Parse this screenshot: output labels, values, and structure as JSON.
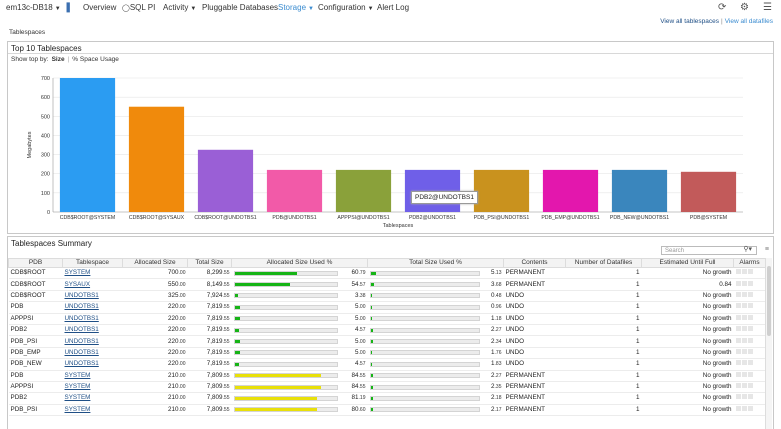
{
  "topbar": {
    "target": "em13c-DB18",
    "overview": "Overview",
    "sqlpi": "SQL PI",
    "activity": "Activity",
    "pluggable": "Pluggable Databases",
    "storage": "Storage",
    "configuration": "Configuration",
    "alertlog": "Alert Log"
  },
  "links": {
    "view_tablespaces": "View all tablespaces",
    "view_datafiles": "View all datafiles",
    "separator": "|"
  },
  "breadcrumb": "Tablespaces",
  "top10": {
    "title": "Top 10 Tablespaces",
    "show_by_label": "Show top by:",
    "option_size": "Size",
    "option_usage": "% Space Usage",
    "tooltip": "PDB2@UNDOTBS1"
  },
  "chart_data": {
    "type": "bar",
    "categories": [
      "CDB$ROOT@SYSTEM",
      "CDB$ROOT@SYSAUX",
      "CDB$ROOT@UNDOTBS1",
      "PDB@UNDOTBS1",
      "APPPSI@UNDOTBS1",
      "PDB2@UNDOTBS1",
      "PDB_PSI@UNDOTBS1",
      "PDB_EMP@UNDOTBS1",
      "PDB_NEW@UNDOTBS1",
      "PDB@SYSTEM"
    ],
    "values": [
      700,
      550,
      325,
      220,
      220,
      220,
      220,
      220,
      220,
      210
    ],
    "colors": [
      "#2b9cf2",
      "#f08a0c",
      "#9a5fd6",
      "#f25aa8",
      "#8aa13a",
      "#6f5fe8",
      "#c9921e",
      "#e317ad",
      "#3a86bd",
      "#c25a5a"
    ],
    "xlabel": "Tablespaces",
    "ylabel": "Megabytes",
    "ylim": [
      0,
      700
    ],
    "yticks": [
      0,
      100,
      200,
      300,
      400,
      500,
      600,
      700
    ],
    "grid": true
  },
  "summary": {
    "title": "Tablespaces Summary",
    "search_placeholder": "Search",
    "columns": [
      "PDB",
      "Tablespace",
      "Allocated Size",
      "Total Size",
      "Allocated Size Used %",
      "Total Size Used %",
      "Contents",
      "Number of Datafiles",
      "Estimated Until Full",
      "Alarms"
    ],
    "rows": [
      {
        "pdb": "CDB$ROOT",
        "ts": "SYSTEM",
        "alloc_int": "700",
        "alloc_dec": ".00",
        "total_int": "8,299",
        "total_dec": ".55",
        "apct": 60.79,
        "apct_int": "60",
        "apct_dec": ".79",
        "tpct": 5.13,
        "tpct_int": "5",
        "tpct_dec": ".13",
        "contents": "PERMANENT",
        "files": "1",
        "est": "No growth"
      },
      {
        "pdb": "CDB$ROOT",
        "ts": "SYSAUX",
        "alloc_int": "550",
        "alloc_dec": ".00",
        "total_int": "8,149",
        "total_dec": ".55",
        "apct": 54.57,
        "apct_int": "54",
        "apct_dec": ".57",
        "tpct": 3.68,
        "tpct_int": "3",
        "tpct_dec": ".68",
        "contents": "PERMANENT",
        "files": "1",
        "est": "0.84"
      },
      {
        "pdb": "CDB$ROOT",
        "ts": "UNDOTBS1",
        "alloc_int": "325",
        "alloc_dec": ".00",
        "total_int": "7,924",
        "total_dec": ".55",
        "apct": 3.38,
        "apct_int": "3",
        "apct_dec": ".38",
        "tpct": 0.48,
        "tpct_int": "0",
        "tpct_dec": ".48",
        "contents": "UNDO",
        "files": "1",
        "est": "No growth"
      },
      {
        "pdb": "PDB",
        "ts": "UNDOTBS1",
        "alloc_int": "220",
        "alloc_dec": ".00",
        "total_int": "7,819",
        "total_dec": ".55",
        "apct": 5.0,
        "apct_int": "5",
        "apct_dec": ".00",
        "tpct": 0.96,
        "tpct_int": "0",
        "tpct_dec": ".96",
        "contents": "UNDO",
        "files": "1",
        "est": "No growth"
      },
      {
        "pdb": "APPPSI",
        "ts": "UNDOTBS1",
        "alloc_int": "220",
        "alloc_dec": ".00",
        "total_int": "7,819",
        "total_dec": ".55",
        "apct": 5.0,
        "apct_int": "5",
        "apct_dec": ".00",
        "tpct": 1.18,
        "tpct_int": "1",
        "tpct_dec": ".18",
        "contents": "UNDO",
        "files": "1",
        "est": "No growth"
      },
      {
        "pdb": "PDB2",
        "ts": "UNDOTBS1",
        "alloc_int": "220",
        "alloc_dec": ".00",
        "total_int": "7,819",
        "total_dec": ".55",
        "apct": 4.57,
        "apct_int": "4",
        "apct_dec": ".57",
        "tpct": 2.27,
        "tpct_int": "2",
        "tpct_dec": ".27",
        "contents": "UNDO",
        "files": "1",
        "est": "No growth"
      },
      {
        "pdb": "PDB_PSI",
        "ts": "UNDOTBS1",
        "alloc_int": "220",
        "alloc_dec": ".00",
        "total_int": "7,819",
        "total_dec": ".55",
        "apct": 5.0,
        "apct_int": "5",
        "apct_dec": ".00",
        "tpct": 2.34,
        "tpct_int": "2",
        "tpct_dec": ".34",
        "contents": "UNDO",
        "files": "1",
        "est": "No growth"
      },
      {
        "pdb": "PDB_EMP",
        "ts": "UNDOTBS1",
        "alloc_int": "220",
        "alloc_dec": ".00",
        "total_int": "7,819",
        "total_dec": ".55",
        "apct": 5.0,
        "apct_int": "5",
        "apct_dec": ".00",
        "tpct": 1.76,
        "tpct_int": "1",
        "tpct_dec": ".76",
        "contents": "UNDO",
        "files": "1",
        "est": "No growth"
      },
      {
        "pdb": "PDB_NEW",
        "ts": "UNDOTBS1",
        "alloc_int": "220",
        "alloc_dec": ".00",
        "total_int": "7,819",
        "total_dec": ".55",
        "apct": 4.57,
        "apct_int": "4",
        "apct_dec": ".57",
        "tpct": 1.83,
        "tpct_int": "1",
        "tpct_dec": ".83",
        "contents": "UNDO",
        "files": "1",
        "est": "No growth"
      },
      {
        "pdb": "PDB",
        "ts": "SYSTEM",
        "alloc_int": "210",
        "alloc_dec": ".00",
        "total_int": "7,809",
        "total_dec": ".55",
        "apct": 84.55,
        "apct_int": "84",
        "apct_dec": ".55",
        "tpct": 2.27,
        "tpct_int": "2",
        "tpct_dec": ".27",
        "contents": "PERMANENT",
        "files": "1",
        "est": "No growth"
      },
      {
        "pdb": "APPPSI",
        "ts": "SYSTEM",
        "alloc_int": "210",
        "alloc_dec": ".00",
        "total_int": "7,809",
        "total_dec": ".55",
        "apct": 84.55,
        "apct_int": "84",
        "apct_dec": ".55",
        "tpct": 2.35,
        "tpct_int": "2",
        "tpct_dec": ".35",
        "contents": "PERMANENT",
        "files": "1",
        "est": "No growth"
      },
      {
        "pdb": "PDB2",
        "ts": "SYSTEM",
        "alloc_int": "210",
        "alloc_dec": ".00",
        "total_int": "7,809",
        "total_dec": ".55",
        "apct": 81.19,
        "apct_int": "81",
        "apct_dec": ".19",
        "tpct": 2.18,
        "tpct_int": "2",
        "tpct_dec": ".18",
        "contents": "PERMANENT",
        "files": "1",
        "est": "No growth"
      },
      {
        "pdb": "PDB_PSI",
        "ts": "SYSTEM",
        "alloc_int": "210",
        "alloc_dec": ".00",
        "total_int": "7,809",
        "total_dec": ".55",
        "apct": 80.6,
        "apct_int": "80",
        "apct_dec": ".60",
        "tpct": 2.17,
        "tpct_int": "2",
        "tpct_dec": ".17",
        "contents": "PERMANENT",
        "files": "1",
        "est": "No growth"
      }
    ]
  },
  "colors": {
    "accent": "#3b8cd0",
    "link": "#1f4f86",
    "bar_green": "#16b416",
    "bar_yellow": "#e8e00a",
    "bar_track": "#ececec"
  }
}
